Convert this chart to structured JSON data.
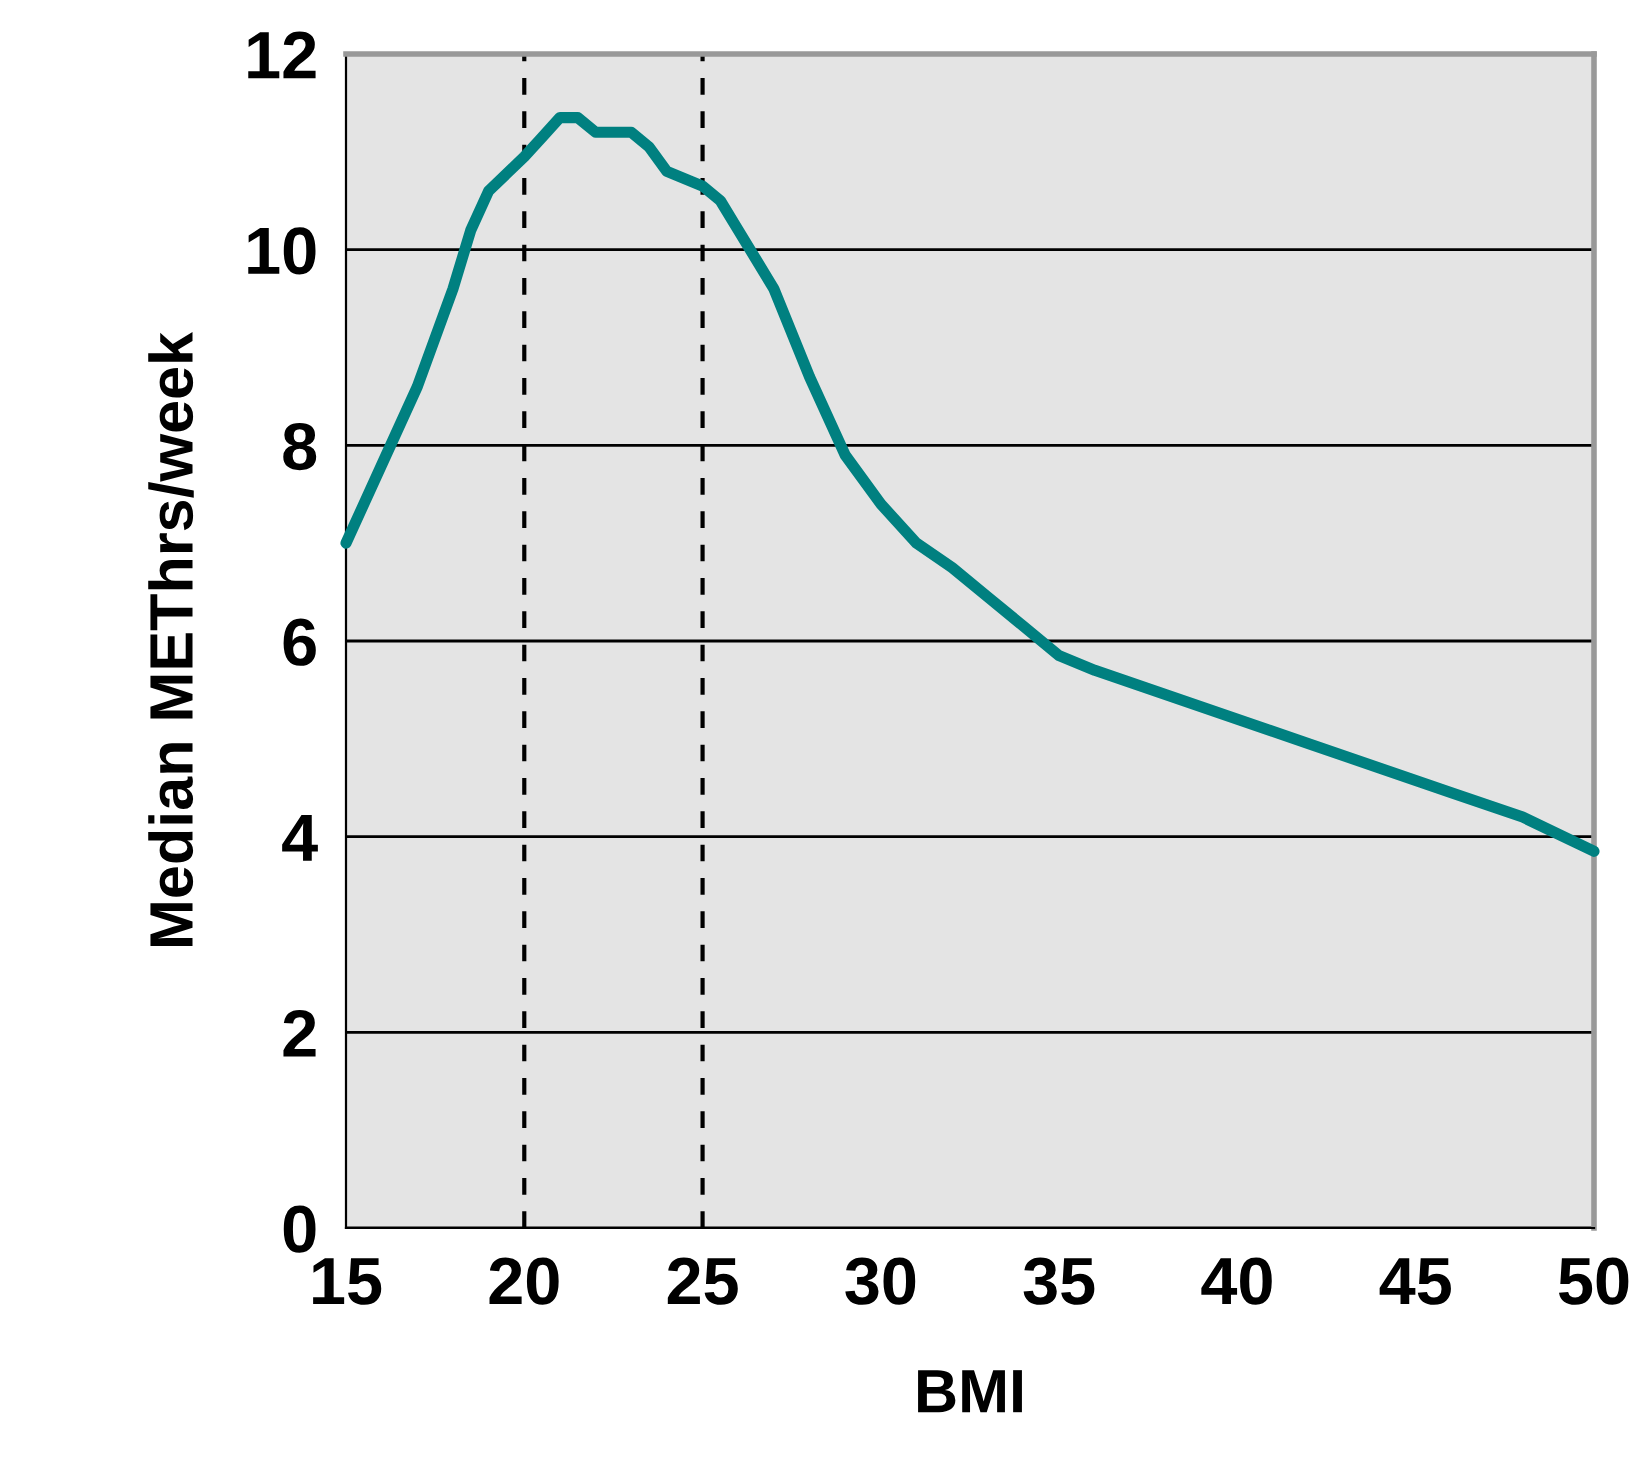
{
  "chart_data": {
    "type": "line",
    "xlabel": "BMI",
    "ylabel": "Median METhrs/week",
    "series": [
      {
        "color": "#008080",
        "x": [
          15,
          16,
          17,
          18,
          18.5,
          19,
          20,
          20.5,
          21,
          21.5,
          22,
          23,
          23.5,
          24,
          25,
          25.5,
          26,
          27,
          28,
          29,
          30,
          31,
          32,
          33,
          34,
          35,
          36,
          38,
          40,
          42,
          44,
          46,
          48,
          50
        ],
        "values": [
          7.0,
          7.8,
          8.6,
          9.6,
          10.2,
          10.6,
          10.95,
          11.15,
          11.35,
          11.35,
          11.2,
          11.2,
          11.05,
          10.8,
          10.65,
          10.5,
          10.2,
          9.6,
          8.7,
          7.9,
          7.4,
          7.0,
          6.75,
          6.45,
          6.15,
          5.85,
          5.7,
          5.45,
          5.2,
          4.95,
          4.7,
          4.45,
          4.2,
          3.85
        ]
      }
    ],
    "xlim": [
      15,
      50
    ],
    "xticks": [
      15,
      20,
      25,
      30,
      35,
      40,
      45,
      50
    ],
    "ylim": [
      0,
      12
    ],
    "yticks": [
      0,
      2,
      4,
      6,
      8,
      10,
      12
    ],
    "grid": "y",
    "marker": "none",
    "line_style": "solid",
    "ref_lines": [
      {
        "axis": "x",
        "value": 20,
        "color": "#000000",
        "line_style": "dashed"
      },
      {
        "axis": "x",
        "value": 25,
        "color": "#000000",
        "line_style": "dashed"
      }
    ]
  }
}
